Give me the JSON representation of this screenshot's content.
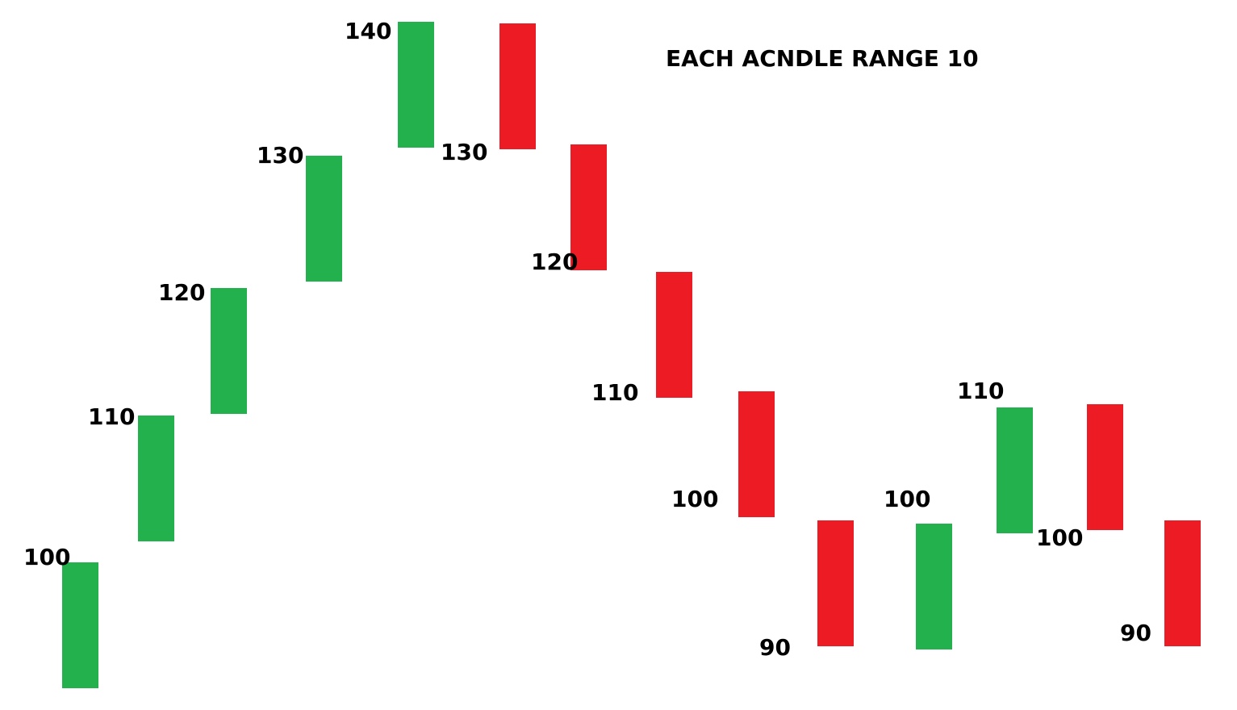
{
  "chart_data": {
    "type": "bar",
    "title": "EACH ACNDLE RANGE 10",
    "candle_range": 10,
    "colors": {
      "up": "#22b14c",
      "down": "#ed1c24",
      "text": "#000000",
      "background": "#ffffff"
    },
    "series": [
      {
        "color": "up",
        "open": 90,
        "close": 100,
        "label": "100"
      },
      {
        "color": "up",
        "open": 100,
        "close": 110,
        "label": "110"
      },
      {
        "color": "up",
        "open": 110,
        "close": 120,
        "label": "120"
      },
      {
        "color": "up",
        "open": 120,
        "close": 130,
        "label": "130"
      },
      {
        "color": "up",
        "open": 130,
        "close": 140,
        "label": "140"
      },
      {
        "color": "down",
        "open": 140,
        "close": 130,
        "label": "130"
      },
      {
        "color": "down",
        "open": 130,
        "close": 120,
        "label": "120"
      },
      {
        "color": "down",
        "open": 120,
        "close": 110,
        "label": "110"
      },
      {
        "color": "down",
        "open": 110,
        "close": 100,
        "label": "100"
      },
      {
        "color": "down",
        "open": 100,
        "close": 90,
        "label": "90"
      },
      {
        "color": "up",
        "open": 90,
        "close": 100,
        "label": "100"
      },
      {
        "color": "up",
        "open": 100,
        "close": 110,
        "label": "110"
      },
      {
        "color": "down",
        "open": 110,
        "close": 100,
        "label": "100"
      },
      {
        "color": "down",
        "open": 100,
        "close": 90,
        "label": "90"
      }
    ]
  }
}
